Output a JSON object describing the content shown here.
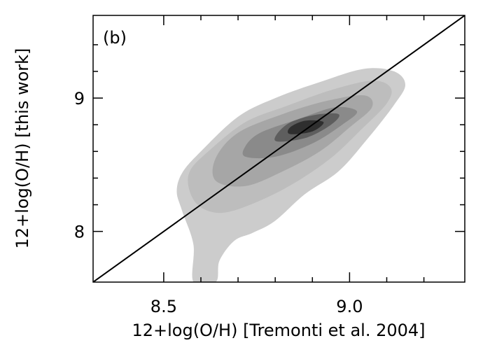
{
  "chart_data": {
    "type": "density-contour",
    "panel_label": "(b)",
    "xlabel": "12+log(O/H) [Tremonti et al. 2004]",
    "ylabel": "12+log(O/H) [this work]",
    "xlim": [
      8.31,
      9.31
    ],
    "ylim": [
      7.62,
      9.62
    ],
    "x_ticks": [
      {
        "value": 8.5,
        "label": "8.5"
      },
      {
        "value": 9.0,
        "label": "9.0"
      }
    ],
    "y_ticks": [
      {
        "value": 8.0,
        "label": "8"
      },
      {
        "value": 9.0,
        "label": "9"
      }
    ],
    "x_minor_ticks": [
      8.6,
      8.7,
      8.8,
      8.9,
      9.1,
      9.2
    ],
    "y_minor_ticks": [
      8.2,
      8.4,
      8.6,
      8.8,
      9.2,
      9.4
    ],
    "reference_line": {
      "type": "one-to-one",
      "points": [
        [
          8.31,
          7.62
        ],
        [
          9.31,
          9.62
        ]
      ]
    },
    "density_levels": [
      {
        "level": 1,
        "color": "#cccccc",
        "contour": [
          [
            8.58,
            7.62
          ],
          [
            8.64,
            7.62
          ],
          [
            8.65,
            7.78
          ],
          [
            8.69,
            7.93
          ],
          [
            8.74,
            7.99
          ],
          [
            8.8,
            8.08
          ],
          [
            8.88,
            8.28
          ],
          [
            8.97,
            8.45
          ],
          [
            9.05,
            8.7
          ],
          [
            9.12,
            8.95
          ],
          [
            9.15,
            9.1
          ],
          [
            9.12,
            9.2
          ],
          [
            9.04,
            9.22
          ],
          [
            8.92,
            9.12
          ],
          [
            8.8,
            9.0
          ],
          [
            8.7,
            8.86
          ],
          [
            8.6,
            8.6
          ],
          [
            8.55,
            8.44
          ],
          [
            8.535,
            8.3
          ],
          [
            8.55,
            8.15
          ],
          [
            8.58,
            7.9
          ]
        ]
      },
      {
        "level": 2,
        "color": "#bdbdbd",
        "contour": [
          [
            8.57,
            8.3
          ],
          [
            8.6,
            8.18
          ],
          [
            8.66,
            8.14
          ],
          [
            8.75,
            8.22
          ],
          [
            8.85,
            8.36
          ],
          [
            8.95,
            8.55
          ],
          [
            9.03,
            8.76
          ],
          [
            9.1,
            8.96
          ],
          [
            9.11,
            9.08
          ],
          [
            9.06,
            9.13
          ],
          [
            8.95,
            9.06
          ],
          [
            8.83,
            8.94
          ],
          [
            8.72,
            8.82
          ],
          [
            8.62,
            8.6
          ],
          [
            8.57,
            8.45
          ]
        ]
      },
      {
        "level": 3,
        "color": "#a6a6a6",
        "contour": [
          [
            8.64,
            8.38
          ],
          [
            8.72,
            8.34
          ],
          [
            8.82,
            8.45
          ],
          [
            8.92,
            8.6
          ],
          [
            9.0,
            8.78
          ],
          [
            9.06,
            8.93
          ],
          [
            9.04,
            9.02
          ],
          [
            8.94,
            8.98
          ],
          [
            8.82,
            8.88
          ],
          [
            8.7,
            8.74
          ],
          [
            8.64,
            8.55
          ]
        ]
      },
      {
        "level": 4,
        "color": "#8a8a8a",
        "contour": [
          [
            8.72,
            8.56
          ],
          [
            8.8,
            8.56
          ],
          [
            8.9,
            8.66
          ],
          [
            8.98,
            8.8
          ],
          [
            9.02,
            8.9
          ],
          [
            8.96,
            8.93
          ],
          [
            8.86,
            8.84
          ],
          [
            8.76,
            8.74
          ],
          [
            8.72,
            8.64
          ]
        ]
      },
      {
        "level": 5,
        "color": "#5e5e5e",
        "contour": [
          [
            8.8,
            8.68
          ],
          [
            8.88,
            8.7
          ],
          [
            8.95,
            8.8
          ],
          [
            8.97,
            8.88
          ],
          [
            8.9,
            8.87
          ],
          [
            8.83,
            8.8
          ]
        ]
      },
      {
        "level": 6,
        "color": "#2f2f2f",
        "contour": [
          [
            8.84,
            8.73
          ],
          [
            8.9,
            8.75
          ],
          [
            8.93,
            8.82
          ],
          [
            8.88,
            8.83
          ],
          [
            8.84,
            8.78
          ]
        ]
      }
    ]
  }
}
